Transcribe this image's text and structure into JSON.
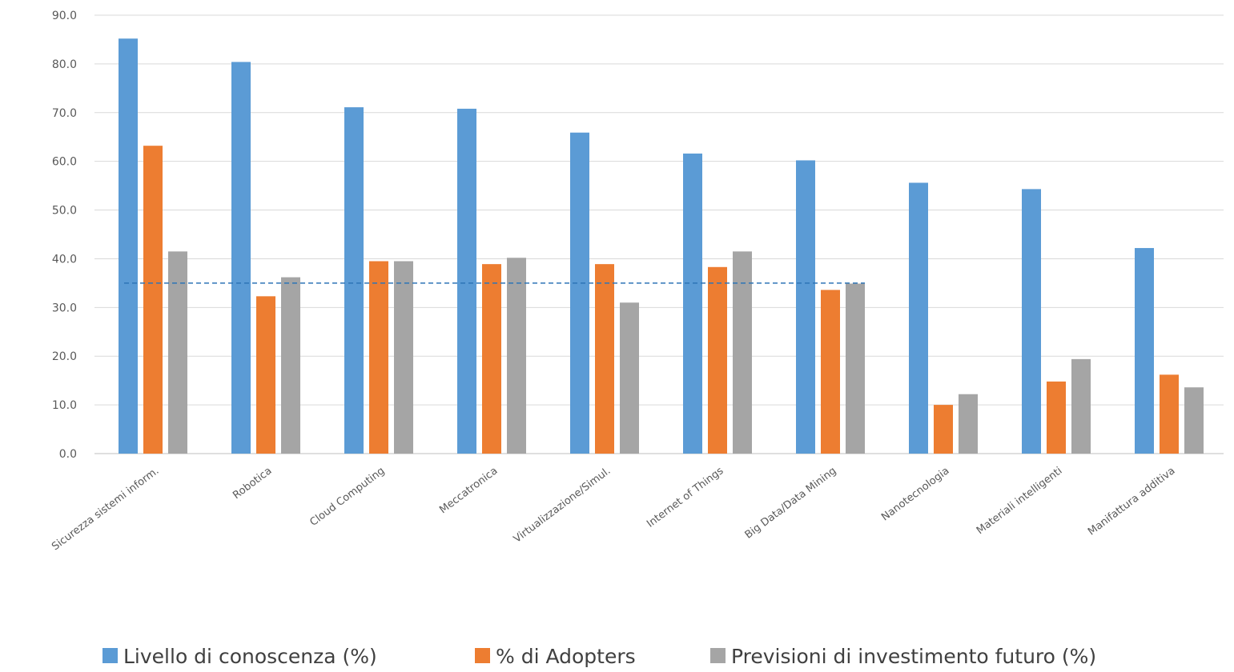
{
  "chart_data": {
    "type": "bar",
    "title": "",
    "xlabel": "",
    "ylabel": "",
    "ylim": [
      0,
      90
    ],
    "yticks": [
      "0.0",
      "10.0",
      "20.0",
      "30.0",
      "40.0",
      "50.0",
      "60.0",
      "70.0",
      "80.0",
      "90.0"
    ],
    "grid": true,
    "legend_position": "bottom",
    "categories": [
      "Sicurezza sistemi inform.",
      "Robotica",
      "Cloud Computing",
      "Meccatronica",
      "Virtualizzazione/Simul.",
      "Internet of Things",
      "Big Data/Data Mining",
      "Nanotecnologia",
      "Materiali intelligenti",
      "Manifattura additiva"
    ],
    "series": [
      {
        "name": "Livello di conoscenza  (%)",
        "color": "#5b9bd5",
        "values": [
          85.2,
          80.4,
          71.1,
          70.8,
          65.9,
          61.6,
          60.2,
          55.6,
          54.3,
          42.2
        ]
      },
      {
        "name": "% di Adopters",
        "color": "#ed7d31",
        "values": [
          63.2,
          32.3,
          39.5,
          38.9,
          38.9,
          38.3,
          33.6,
          10.0,
          14.8,
          16.2
        ]
      },
      {
        "name": "Previsioni di investimento futuro (%)",
        "color": "#a5a5a5",
        "values": [
          41.5,
          36.2,
          39.5,
          40.2,
          31.0,
          41.5,
          34.9,
          12.2,
          19.4,
          13.6
        ]
      }
    ],
    "reference_line": {
      "value": 35,
      "from_category": 0,
      "to_category": 6,
      "color": "#2e75b6",
      "style": "dashed"
    }
  }
}
